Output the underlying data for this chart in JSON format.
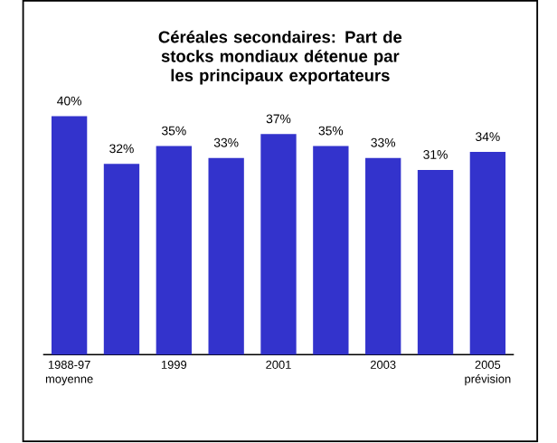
{
  "chart_data": {
    "type": "bar",
    "title": "Céréales secondaires: Part de stocks mondiaux détenue par les principaux exportateurs",
    "categories": [
      "1988-97 moyenne",
      null,
      "1999",
      null,
      "2001",
      null,
      "2003",
      null,
      "2005 prévision"
    ],
    "values": [
      40,
      32,
      35,
      33,
      37,
      35,
      33,
      31,
      34
    ],
    "value_labels": [
      "40%",
      "32%",
      "35%",
      "33%",
      "37%",
      "35%",
      "33%",
      "31%",
      "34%"
    ],
    "color": "#3333cc",
    "tick_labels": "x",
    "grid": false
  }
}
